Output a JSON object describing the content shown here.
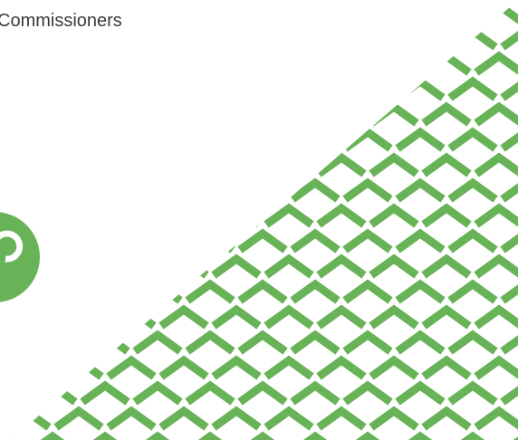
{
  "heading": {
    "text": "Commissioners"
  }
}
